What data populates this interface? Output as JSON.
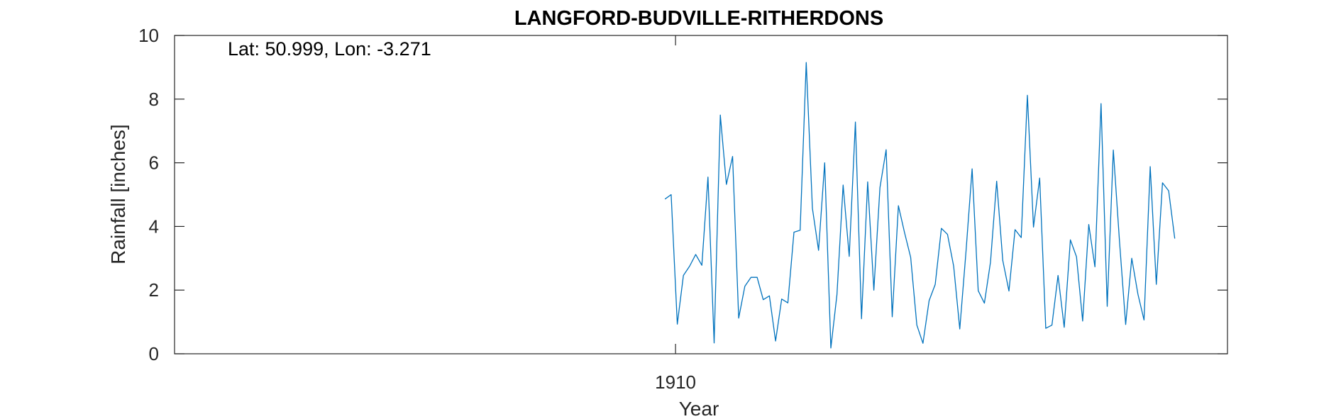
{
  "chart_data": {
    "type": "line",
    "title": "LANGFORD-BUDVILLE-RITHERDONS",
    "xlabel": "Year",
    "ylabel": "Rainfall [inches]",
    "annotation": "Lat: 50.999, Lon: -3.271",
    "xlim": [
      1862.42,
      1962.42
    ],
    "ylim": [
      0,
      10
    ],
    "x_ticks": [
      {
        "value": 1910,
        "label": "1910"
      }
    ],
    "y_ticks": [
      {
        "value": 0,
        "label": "0"
      },
      {
        "value": 2,
        "label": "2"
      },
      {
        "value": 4,
        "label": "4"
      },
      {
        "value": 6,
        "label": "6"
      },
      {
        "value": 8,
        "label": "8"
      },
      {
        "value": 10,
        "label": "10"
      }
    ],
    "grid": false,
    "line_color": "#0072bd",
    "series": [
      {
        "x_start": 1909.0,
        "x_step": 0.5833,
        "values": [
          4.86,
          5.0,
          0.93,
          2.46,
          2.75,
          3.12,
          2.78,
          5.55,
          0.34,
          7.5,
          5.32,
          6.2,
          1.12,
          2.12,
          2.4,
          2.4,
          1.7,
          1.82,
          0.4,
          1.72,
          1.6,
          3.82,
          3.88,
          9.15,
          4.57,
          3.25,
          6.0,
          0.18,
          1.86,
          5.3,
          3.06,
          7.28,
          1.1,
          5.4,
          2.0,
          5.22,
          6.41,
          1.16,
          4.65,
          3.81,
          3.03,
          0.9,
          0.33,
          1.67,
          2.18,
          3.94,
          3.75,
          2.75,
          0.78,
          3.19,
          5.81,
          1.98,
          1.59,
          2.88,
          5.42,
          2.93,
          1.97,
          3.9,
          3.65,
          8.12,
          3.98,
          5.52,
          0.8,
          0.9,
          2.46,
          0.83,
          3.58,
          3.05,
          1.03,
          4.06,
          2.73,
          7.86,
          1.49,
          6.4,
          3.54,
          0.92,
          3.0,
          1.87,
          1.06,
          5.88,
          2.18,
          5.37,
          5.12,
          3.62
        ]
      }
    ]
  }
}
